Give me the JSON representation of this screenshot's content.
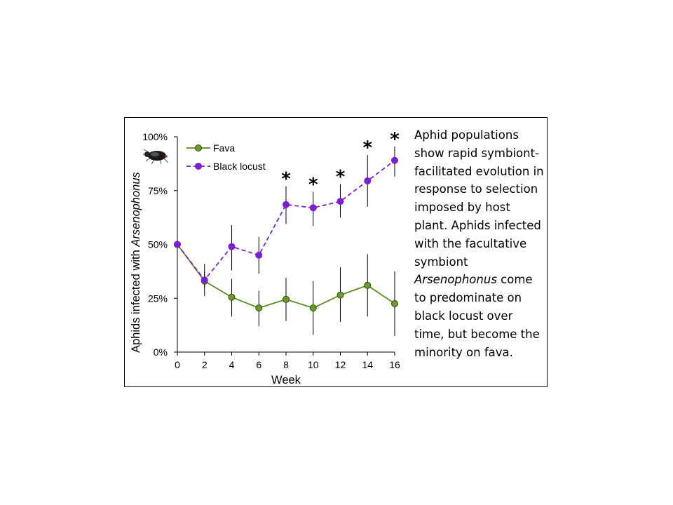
{
  "caption": {
    "part1": "Aphid populations show rapid symbiont- facilitated evolution in response to selection imposed by host plant. Aphids infected with the facultative symbiont ",
    "italic": "Arsenophonus",
    "part2": " come to predominate on black locust over time, but become the minority on fava."
  },
  "chart_data": {
    "type": "line",
    "xlabel": "Week",
    "ylabel_prefix": "Aphids infected with ",
    "ylabel_italic": "Arsenophonus",
    "x": [
      0,
      2,
      4,
      6,
      8,
      10,
      12,
      14,
      16
    ],
    "xlim": [
      0,
      16
    ],
    "ylim": [
      0,
      1
    ],
    "x_ticks": [
      "0",
      "2",
      "4",
      "6",
      "8",
      "10",
      "12",
      "14",
      "16"
    ],
    "y_ticks": [
      {
        "value": 0,
        "label": "0%"
      },
      {
        "value": 0.25,
        "label": "25%"
      },
      {
        "value": 0.5,
        "label": "50%"
      },
      {
        "value": 0.75,
        "label": "75%"
      },
      {
        "value": 1,
        "label": "100%"
      }
    ],
    "grid": false,
    "legend": "top-left",
    "series": [
      {
        "name": "Fava",
        "color": "#5a8a1e",
        "marker_fill": "#6a9a2a",
        "line_style": "solid",
        "values": [
          0.5,
          0.33,
          0.255,
          0.205,
          0.245,
          0.205,
          0.265,
          0.31,
          0.225
        ],
        "err_low": [
          0.5,
          0.26,
          0.165,
          0.12,
          0.145,
          0.08,
          0.14,
          0.165,
          0.075
        ],
        "err_high": [
          0.5,
          0.41,
          0.34,
          0.285,
          0.345,
          0.33,
          0.395,
          0.455,
          0.375
        ]
      },
      {
        "name": "Black locust",
        "color": "#7b1fd0",
        "marker_fill": "#7b1fd0",
        "line_style": "dashed",
        "values": [
          0.5,
          0.335,
          0.49,
          0.45,
          0.685,
          0.67,
          0.7,
          0.795,
          0.89
        ],
        "err_low": [
          0.5,
          0.3,
          0.38,
          0.365,
          0.595,
          0.585,
          0.625,
          0.675,
          0.815
        ],
        "err_high": [
          0.5,
          0.375,
          0.59,
          0.535,
          0.77,
          0.745,
          0.78,
          0.915,
          0.955
        ]
      }
    ],
    "significance": {
      "symbol": "*",
      "x": [
        8,
        10,
        12,
        14,
        16
      ]
    }
  },
  "icon": "aphid-icon"
}
